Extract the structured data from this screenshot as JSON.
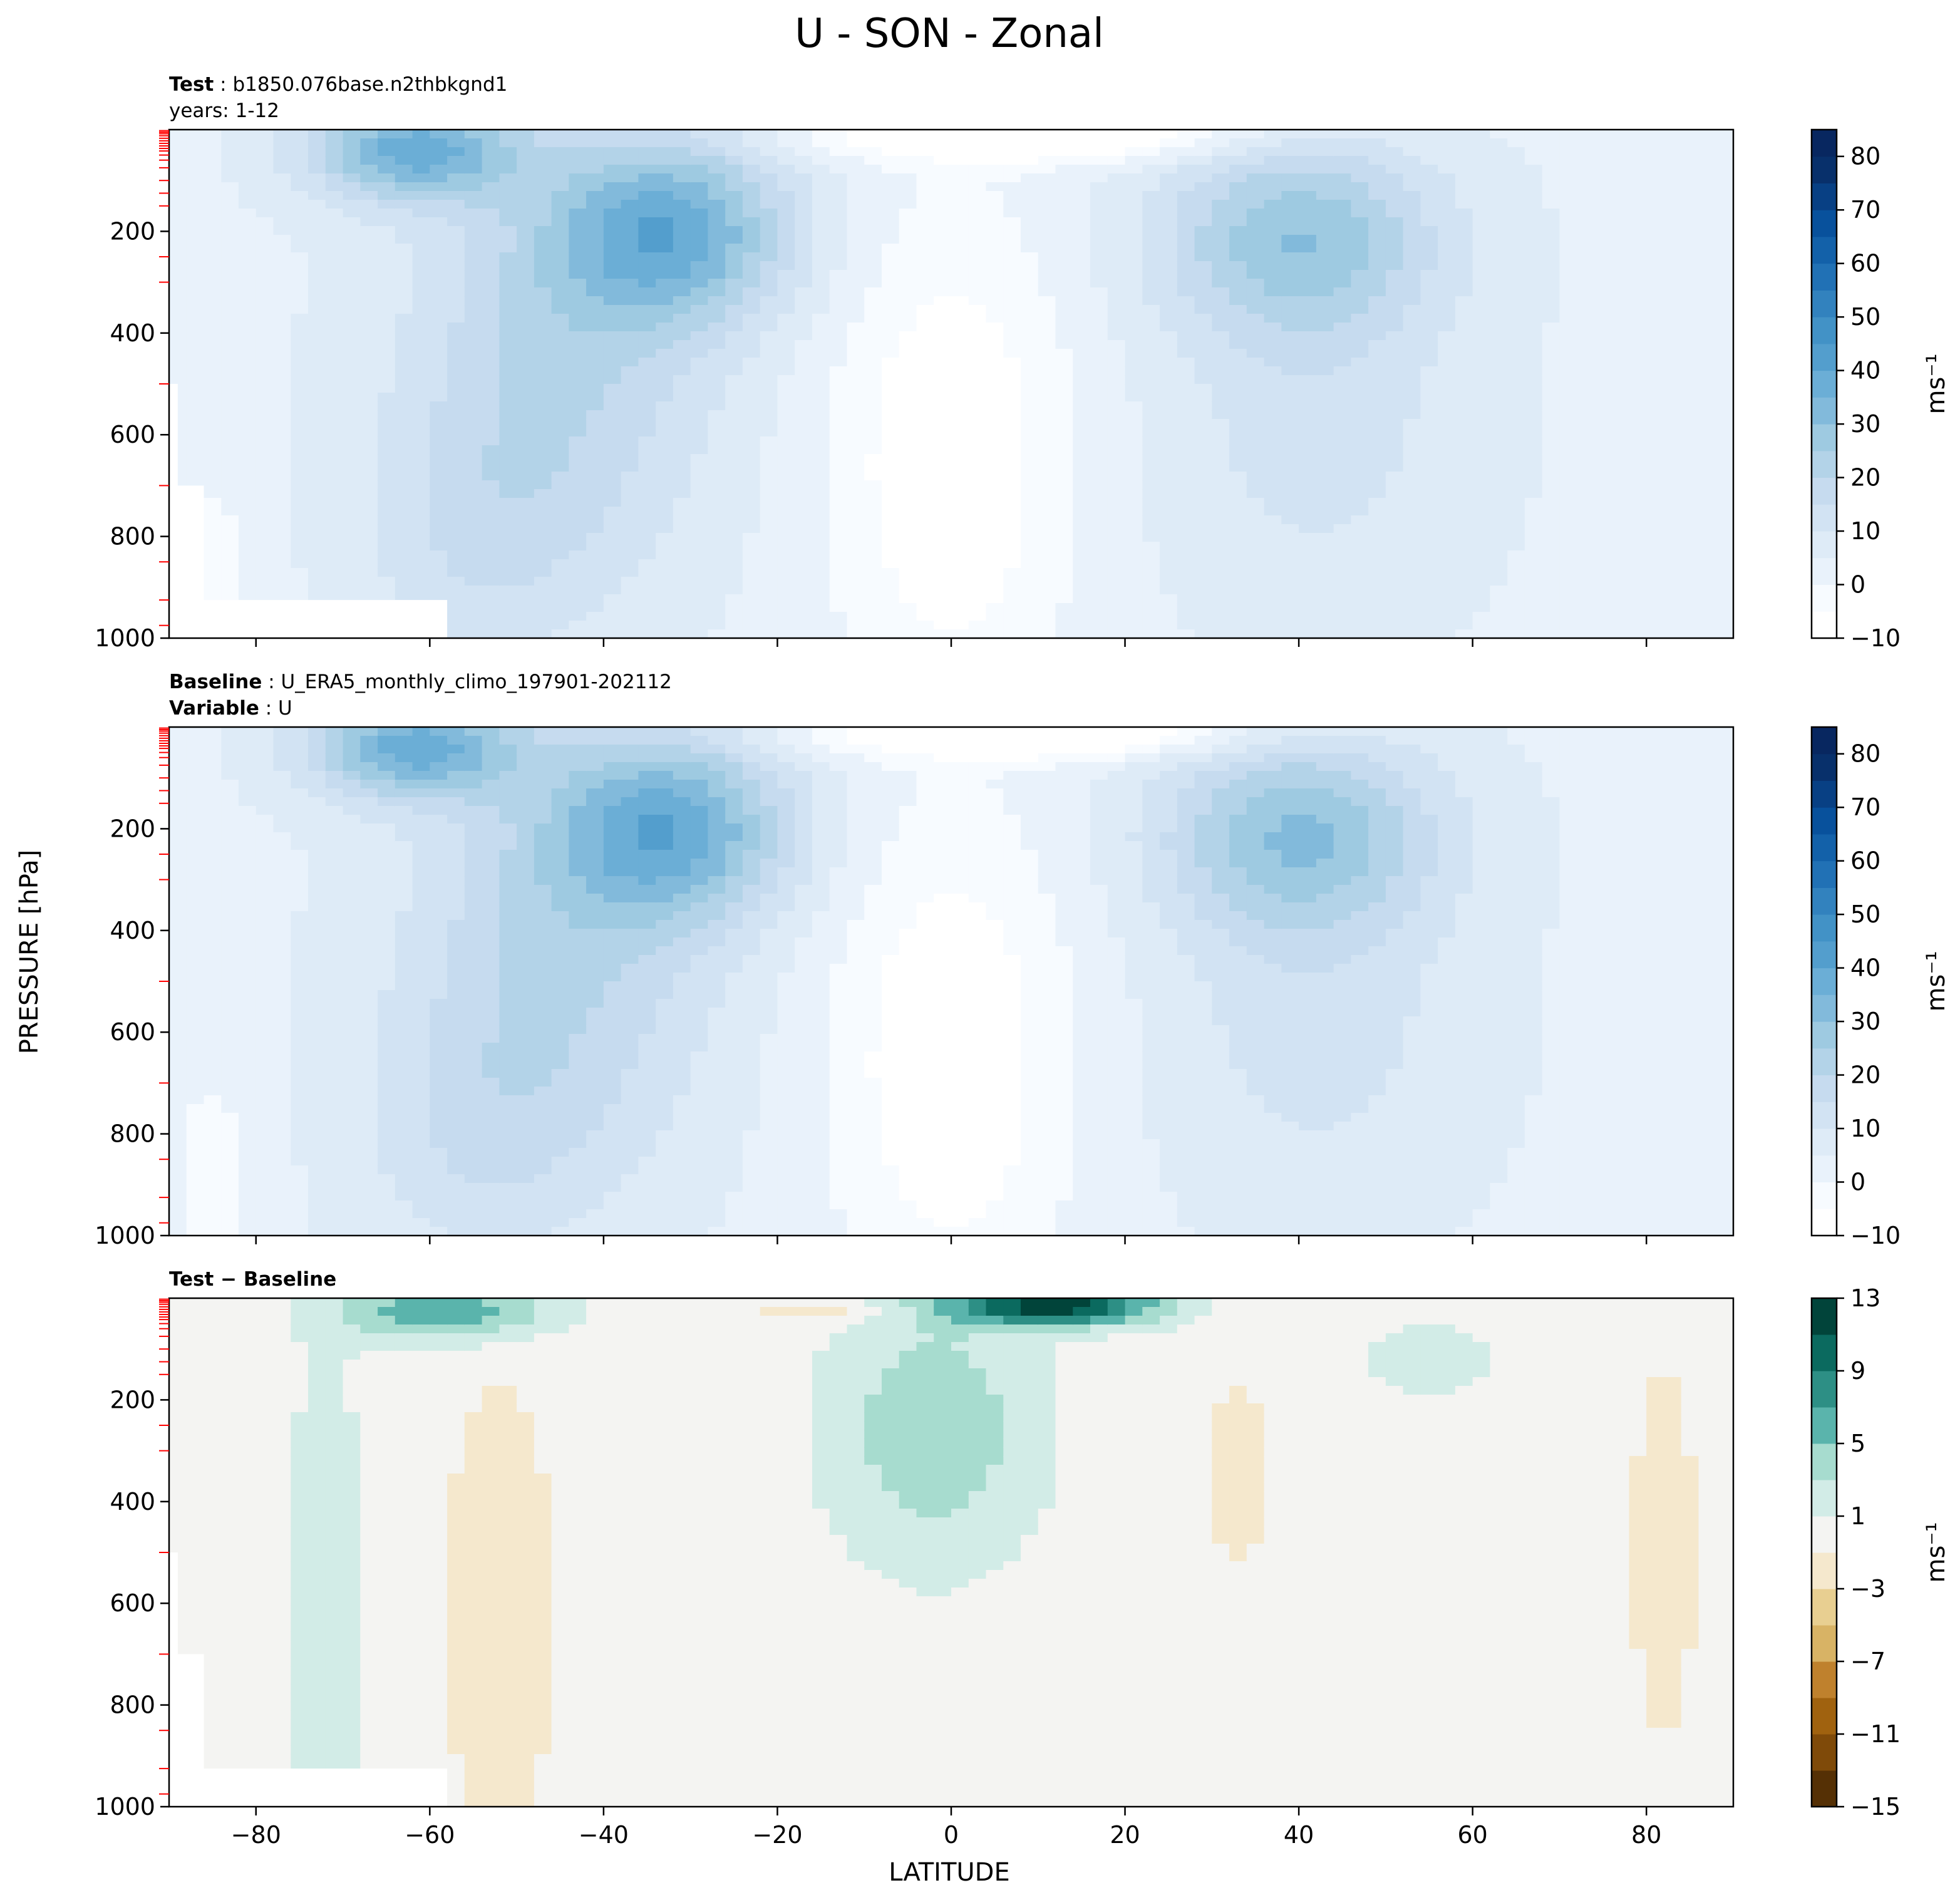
{
  "figure": {
    "title": "U - SON - Zonal",
    "ylabel": "PRESSURE [hPa]",
    "xlabel": "LATITUDE"
  },
  "panels": [
    {
      "id": "test",
      "header_lines": [
        {
          "bold": "Test",
          "sep": " : ",
          "text": "b1850.076base.n2thbkgnd1"
        },
        {
          "bold": "",
          "sep": "",
          "text": "years: 1-12"
        }
      ],
      "colorbar": {
        "label": "ms⁻¹",
        "levels": [
          -10,
          -5,
          0,
          5,
          10,
          15,
          20,
          25,
          30,
          35,
          40,
          45,
          50,
          55,
          60,
          65,
          70,
          75,
          80,
          85
        ],
        "tick_labels": [
          "−10",
          "0",
          "10",
          "20",
          "30",
          "40",
          "50",
          "60",
          "70",
          "80"
        ],
        "colors": [
          "#ffffff",
          "#f7fbff",
          "#e9f2fb",
          "#deebf7",
          "#d2e3f3",
          "#c6dbef",
          "#b3d3e8",
          "#9ecae1",
          "#82badb",
          "#6baed6",
          "#539ecd",
          "#4292c6",
          "#3282be",
          "#2171b5",
          "#1361a9",
          "#08519c",
          "#084084",
          "#08306b",
          "#082760"
        ]
      }
    },
    {
      "id": "baseline",
      "header_lines": [
        {
          "bold": "Baseline",
          "sep": " : ",
          "text": "U_ERA5_monthly_climo_197901-202112"
        },
        {
          "bold": "Variable",
          "sep": " : ",
          "text": "U"
        }
      ],
      "colorbar": {
        "label": "ms⁻¹",
        "levels": [
          -10,
          -5,
          0,
          5,
          10,
          15,
          20,
          25,
          30,
          35,
          40,
          45,
          50,
          55,
          60,
          65,
          70,
          75,
          80,
          85
        ],
        "tick_labels": [
          "−10",
          "0",
          "10",
          "20",
          "30",
          "40",
          "50",
          "60",
          "70",
          "80"
        ],
        "colors": [
          "#ffffff",
          "#f7fbff",
          "#e9f2fb",
          "#deebf7",
          "#d2e3f3",
          "#c6dbef",
          "#b3d3e8",
          "#9ecae1",
          "#82badb",
          "#6baed6",
          "#539ecd",
          "#4292c6",
          "#3282be",
          "#2171b5",
          "#1361a9",
          "#08519c",
          "#084084",
          "#08306b",
          "#082760"
        ]
      }
    },
    {
      "id": "diff",
      "header_lines": [
        {
          "bold": "Test − Baseline",
          "sep": "",
          "text": ""
        }
      ],
      "colorbar": {
        "label": "ms⁻¹",
        "levels": [
          -15,
          -13,
          -11,
          -9,
          -7,
          -5,
          -3,
          -1,
          1,
          3,
          5,
          7,
          9,
          11,
          13
        ],
        "tick_labels": [
          "−15",
          "−11",
          "−7",
          "−3",
          "1",
          "5",
          "9",
          "13"
        ],
        "colors": [
          "#553005",
          "#7f4a09",
          "#a0620f",
          "#bf812d",
          "#d8b365",
          "#e8cf91",
          "#f5e8cd",
          "#f4f4f2",
          "#d2ece7",
          "#a7dccf",
          "#5ab4ac",
          "#2d8f85",
          "#0b6a5f",
          "#01443a"
        ]
      }
    }
  ],
  "axes": {
    "x_ticks": [
      -80,
      -60,
      -40,
      -20,
      0,
      20,
      40,
      60,
      80
    ],
    "x_tick_labels": [
      "−80",
      "−60",
      "−40",
      "−20",
      "0",
      "20",
      "40",
      "60",
      "80"
    ],
    "y_ticks": [
      200,
      400,
      600,
      800,
      1000
    ],
    "y_tick_labels": [
      "200",
      "400",
      "600",
      "800",
      "1000"
    ],
    "x_range": [
      -90,
      90
    ],
    "y_range_inverted": [
      1000,
      0
    ],
    "red_minor_ticks_hpa": [
      2,
      5,
      8,
      12,
      17,
      22,
      27,
      32,
      37,
      42,
      50,
      60,
      75,
      100,
      125,
      150,
      250,
      300,
      500,
      700,
      850,
      925,
      975
    ]
  },
  "chart_data": {
    "type": "heatmap",
    "title": "U - SON - Zonal",
    "xlabel": "LATITUDE",
    "ylabel": "PRESSURE [hPa]",
    "x_range": [
      -90,
      90
    ],
    "y_range": [
      1000,
      0
    ],
    "units": "ms⁻¹",
    "panels": [
      {
        "name": "Test",
        "approx_features": [
          {
            "feature": "southern jet core",
            "lat": -30,
            "pressure": 200,
            "value": 40
          },
          {
            "feature": "southern stratospheric/polar jet",
            "lat": -60,
            "pressure": 20,
            "value": 45
          },
          {
            "feature": "northern jet core",
            "lat": 40,
            "pressure": 200,
            "value": 30
          },
          {
            "feature": "tropical easterlies",
            "lat": 10,
            "pressure": 20,
            "value": -10
          }
        ]
      },
      {
        "name": "Baseline",
        "approx_features": [
          {
            "feature": "southern jet core",
            "lat": -30,
            "pressure": 200,
            "value": 40
          },
          {
            "feature": "southern stratospheric/polar jet",
            "lat": -60,
            "pressure": 20,
            "value": 45
          },
          {
            "feature": "northern jet core",
            "lat": 40,
            "pressure": 200,
            "value": 35
          },
          {
            "feature": "tropical easterlies",
            "lat": 10,
            "pressure": 20,
            "value": -10
          }
        ]
      },
      {
        "name": "Test − Baseline",
        "approx_features": [
          {
            "feature": "upper tropical positive anomaly",
            "lat": 10,
            "pressure": 15,
            "value": 11
          },
          {
            "feature": "southern high-latitude upper positive",
            "lat": -60,
            "pressure": 20,
            "value": 7
          },
          {
            "feature": "equatorial upper-tropospheric positive",
            "lat": -2,
            "pressure": 250,
            "value": 4
          },
          {
            "feature": "southern midlatitude negative column",
            "lat": -50,
            "pressure": 600,
            "value": -2
          },
          {
            "feature": "northern polar negative column",
            "lat": 80,
            "pressure": 500,
            "value": -2
          }
        ]
      }
    ]
  }
}
